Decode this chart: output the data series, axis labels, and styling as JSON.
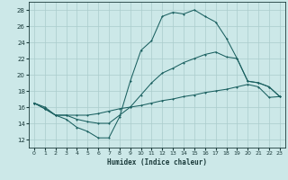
{
  "xlabel": "Humidex (Indice chaleur)",
  "xlim": [
    -0.5,
    23.5
  ],
  "ylim": [
    11,
    29
  ],
  "yticks": [
    12,
    14,
    16,
    18,
    20,
    22,
    24,
    26,
    28
  ],
  "xticks": [
    0,
    1,
    2,
    3,
    4,
    5,
    6,
    7,
    8,
    9,
    10,
    11,
    12,
    13,
    14,
    15,
    16,
    17,
    18,
    19,
    20,
    21,
    22,
    23
  ],
  "bg_color": "#cce8e8",
  "grid_color": "#aacccc",
  "line_color": "#1a6060",
  "line1_y": [
    16.5,
    16.0,
    15.0,
    14.5,
    13.5,
    13.0,
    12.2,
    12.2,
    14.8,
    19.2,
    23.0,
    24.2,
    27.2,
    27.7,
    27.5,
    28.0,
    27.2,
    26.5,
    24.5,
    22.0,
    19.2,
    19.0,
    18.5,
    17.3
  ],
  "line2_y": [
    16.5,
    15.8,
    15.0,
    15.0,
    15.0,
    15.0,
    15.2,
    15.5,
    15.8,
    16.0,
    16.2,
    16.5,
    16.8,
    17.0,
    17.3,
    17.5,
    17.8,
    18.0,
    18.2,
    18.5,
    18.8,
    18.5,
    17.2,
    17.3
  ],
  "line3_y": [
    16.5,
    15.8,
    15.0,
    15.0,
    14.5,
    14.2,
    14.0,
    14.0,
    15.0,
    16.0,
    17.5,
    19.0,
    20.2,
    20.8,
    21.5,
    22.0,
    22.5,
    22.8,
    22.2,
    22.0,
    19.2,
    19.0,
    18.5,
    17.3
  ]
}
